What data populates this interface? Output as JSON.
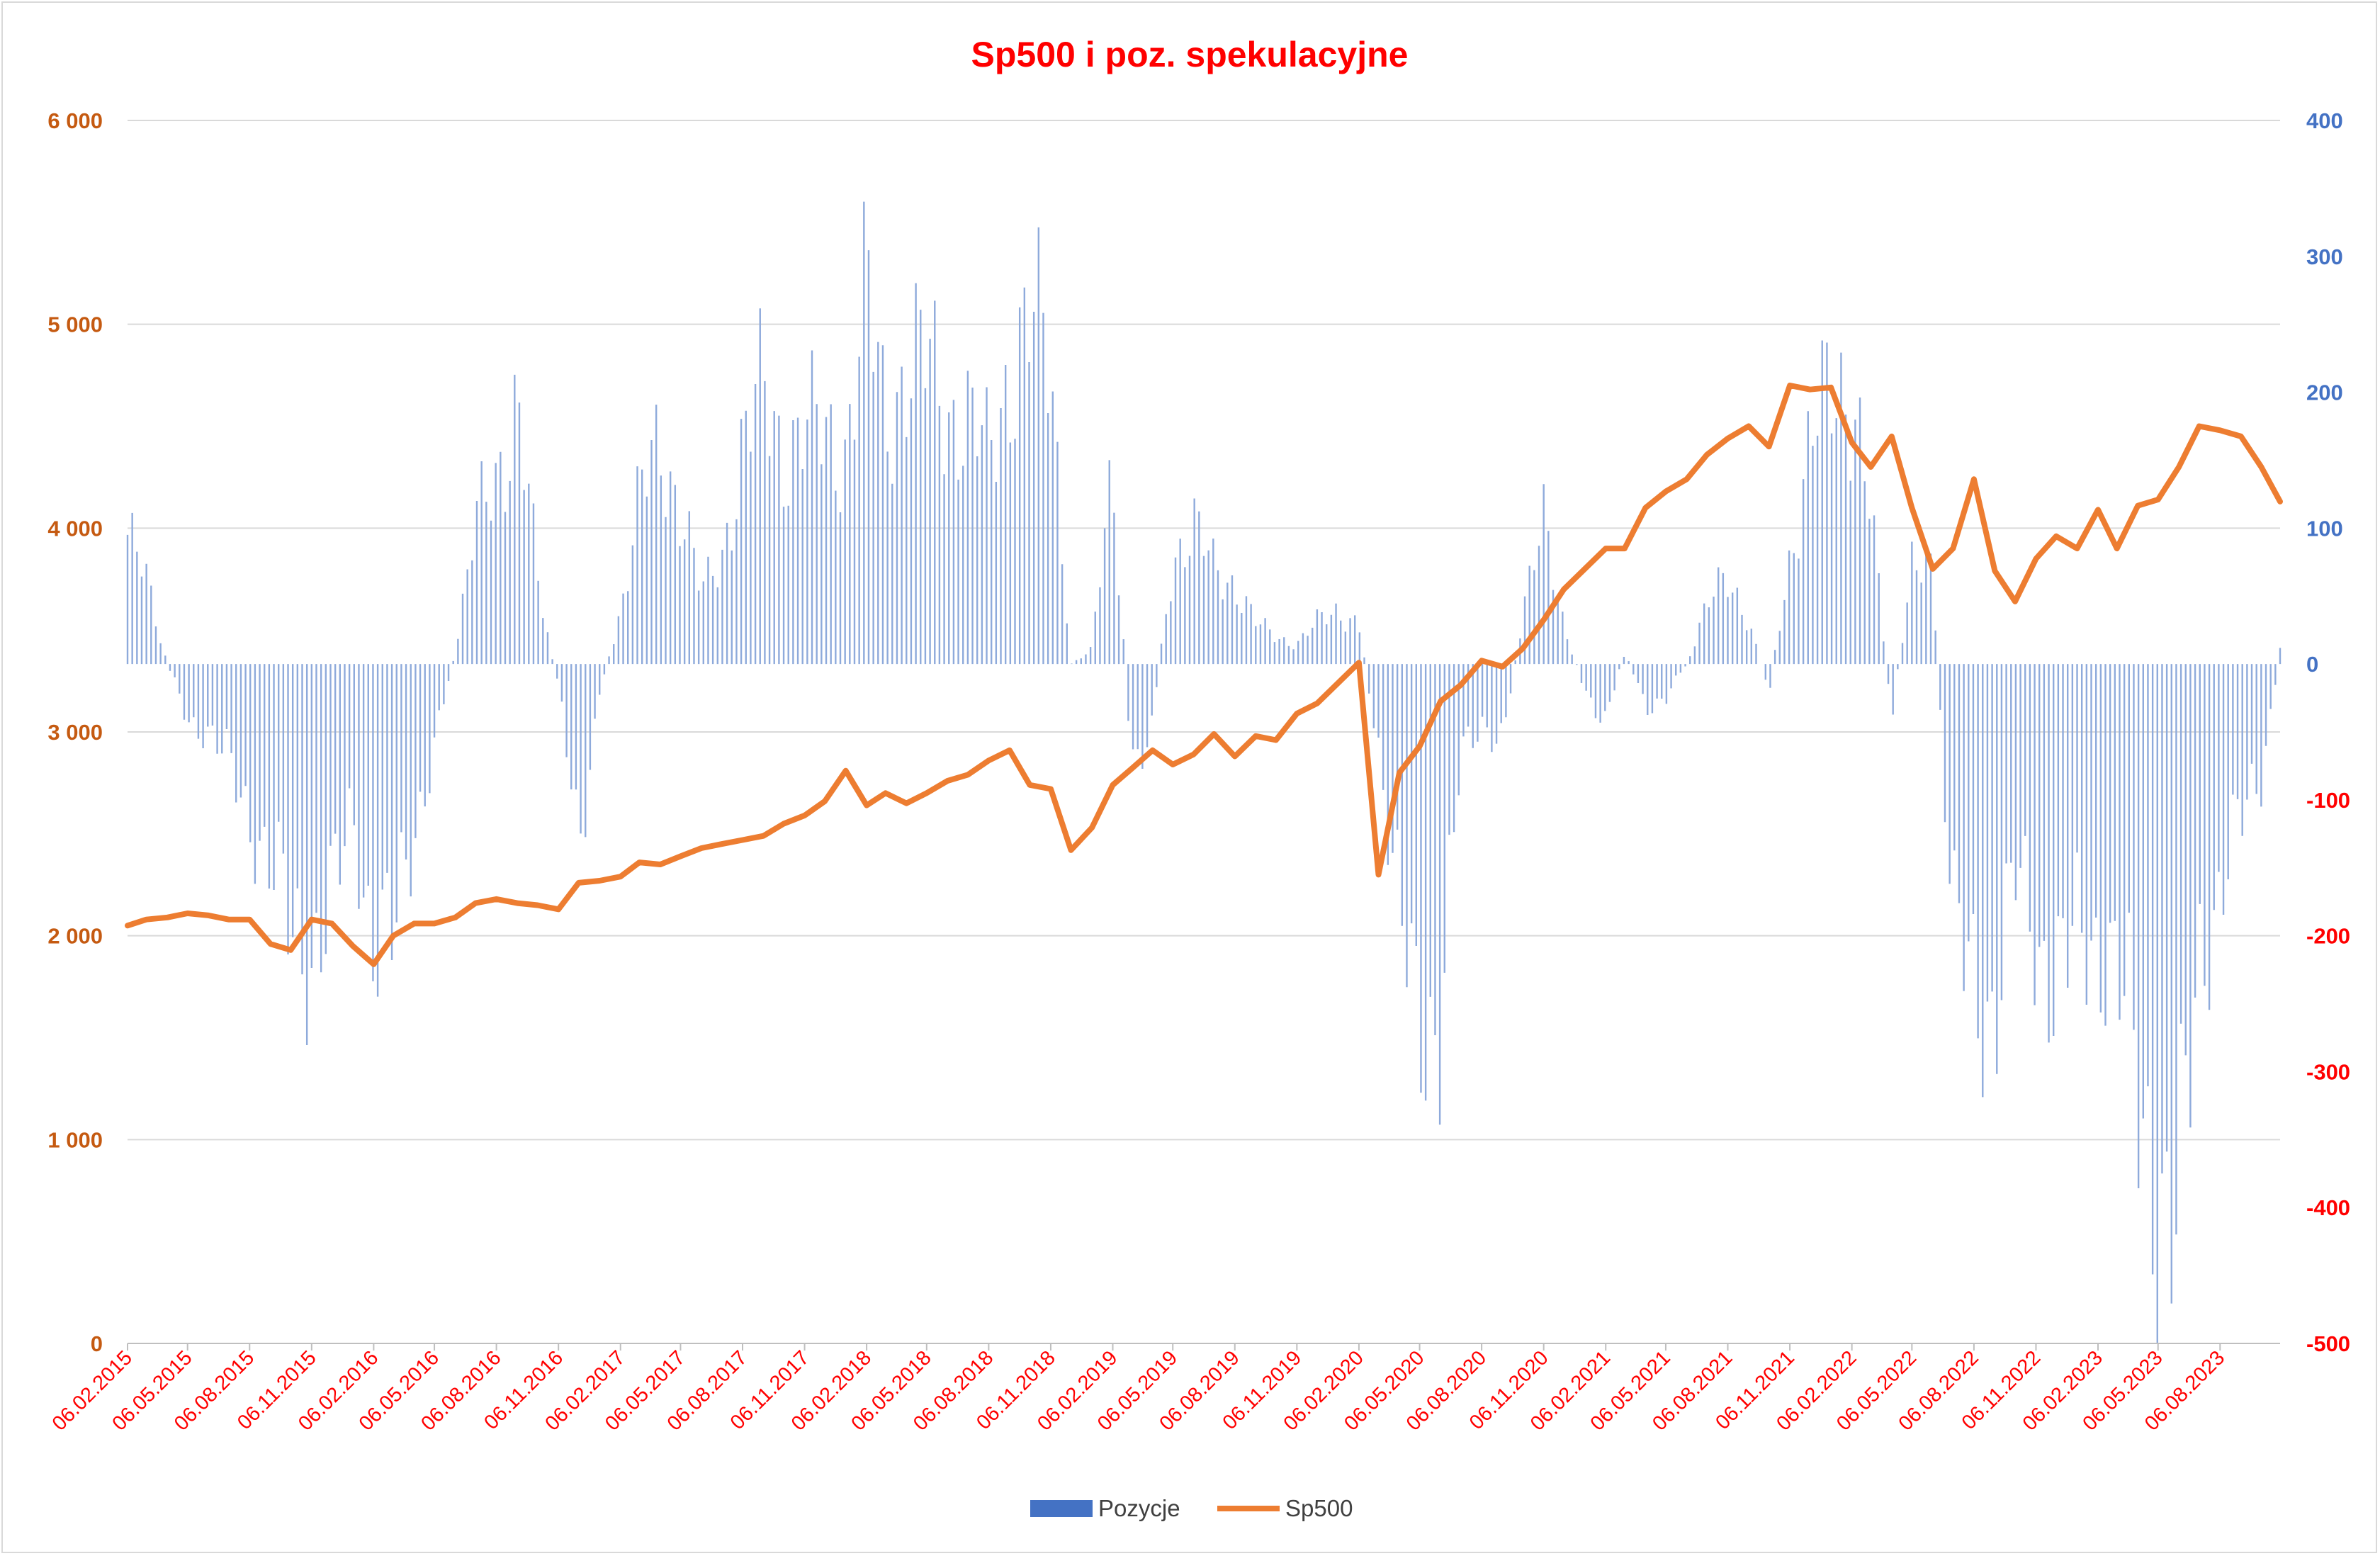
{
  "chart_data": {
    "type": "bar+line",
    "title": "Sp500 i poz. spekulacyjne",
    "legend": {
      "placement": "bottom",
      "entries": [
        {
          "name": "Pozycje",
          "color": "#4472c4",
          "kind": "bar"
        },
        {
          "name": "Sp500",
          "color": "#ed7d31",
          "kind": "line"
        }
      ]
    },
    "y_left": {
      "range": [
        0,
        6000
      ],
      "ticks": [
        0,
        1000,
        2000,
        3000,
        4000,
        5000,
        6000
      ],
      "tick_labels": [
        "0",
        "1 000",
        "2 000",
        "3 000",
        "4 000",
        "5 000",
        "6 000"
      ],
      "color": "#c55a11"
    },
    "y_right": {
      "range": [
        -500,
        400
      ],
      "ticks": [
        -500,
        -400,
        -300,
        -200,
        -100,
        0,
        100,
        200,
        300,
        400
      ],
      "tick_labels": [
        "-500",
        "-400",
        "-300",
        "-200",
        "-100",
        "0",
        "100",
        "200",
        "300",
        "400"
      ],
      "positive_color": "#4472c4",
      "negative_color": "#ff0000"
    },
    "x_axis": {
      "range": [
        "2015-02-06",
        "2023-11-03"
      ],
      "tick_dates": [
        "2015-02-06",
        "2015-05-06",
        "2015-08-06",
        "2015-11-06",
        "2016-02-06",
        "2016-05-06",
        "2016-08-06",
        "2016-11-06",
        "2017-02-06",
        "2017-05-06",
        "2017-08-06",
        "2017-11-06",
        "2018-02-06",
        "2018-05-06",
        "2018-08-06",
        "2018-11-06",
        "2019-02-06",
        "2019-05-06",
        "2019-08-06",
        "2019-11-06",
        "2020-02-06",
        "2020-05-06",
        "2020-08-06",
        "2020-11-06",
        "2021-02-06",
        "2021-05-06",
        "2021-08-06",
        "2021-11-06",
        "2022-02-06",
        "2022-05-06",
        "2022-08-06",
        "2022-11-06",
        "2023-02-06",
        "2023-05-06",
        "2023-08-06"
      ],
      "tick_labels": [
        "06.02.2015",
        "06.05.2015",
        "06.08.2015",
        "06.11.2015",
        "06.02.2016",
        "06.05.2016",
        "06.08.2016",
        "06.11.2016",
        "06.02.2017",
        "06.05.2017",
        "06.08.2017",
        "06.11.2017",
        "06.02.2018",
        "06.05.2018",
        "06.08.2018",
        "06.11.2018",
        "06.02.2019",
        "06.05.2019",
        "06.08.2019",
        "06.11.2019",
        "06.02.2020",
        "06.05.2020",
        "06.08.2020",
        "06.11.2020",
        "06.02.2021",
        "06.05.2021",
        "06.08.2021",
        "06.11.2021",
        "06.02.2022",
        "06.05.2022",
        "06.08.2022",
        "06.11.2022",
        "06.02.2023",
        "06.05.2023",
        "06.08.2023"
      ],
      "label_color": "#ff0000"
    },
    "grid": true,
    "series": [
      {
        "name": "Pozycje",
        "type": "bar",
        "axis": "right",
        "keypoints": [
          [
            "2015-02-06",
            95
          ],
          [
            "2015-03-06",
            60
          ],
          [
            "2015-04-06",
            0
          ],
          [
            "2015-05-06",
            -40
          ],
          [
            "2015-06-06",
            -50
          ],
          [
            "2015-07-06",
            -75
          ],
          [
            "2015-08-06",
            -110
          ],
          [
            "2015-09-06",
            -150
          ],
          [
            "2015-10-06",
            -200
          ],
          [
            "2015-11-06",
            -210
          ],
          [
            "2015-12-06",
            -180
          ],
          [
            "2016-01-06",
            -110
          ],
          [
            "2016-02-06",
            -200
          ],
          [
            "2016-03-06",
            -210
          ],
          [
            "2016-04-06",
            -120
          ],
          [
            "2016-05-06",
            -60
          ],
          [
            "2016-06-06",
            10
          ],
          [
            "2016-07-06",
            100
          ],
          [
            "2016-08-06",
            140
          ],
          [
            "2016-09-06",
            195
          ],
          [
            "2016-10-06",
            60
          ],
          [
            "2016-11-06",
            -20
          ],
          [
            "2016-12-06",
            -130
          ],
          [
            "2017-01-06",
            -20
          ],
          [
            "2017-02-06",
            40
          ],
          [
            "2017-03-06",
            120
          ],
          [
            "2017-04-06",
            160
          ],
          [
            "2017-05-06",
            120
          ],
          [
            "2017-06-06",
            50
          ],
          [
            "2017-07-06",
            80
          ],
          [
            "2017-08-06",
            160
          ],
          [
            "2017-09-06",
            200
          ],
          [
            "2017-10-06",
            160
          ],
          [
            "2017-11-06",
            170
          ],
          [
            "2017-12-06",
            170
          ],
          [
            "2018-01-06",
            160
          ],
          [
            "2018-02-06",
            270
          ],
          [
            "2018-03-06",
            180
          ],
          [
            "2018-04-06",
            220
          ],
          [
            "2018-05-06",
            220
          ],
          [
            "2018-06-06",
            190
          ],
          [
            "2018-07-06",
            180
          ],
          [
            "2018-08-06",
            150
          ],
          [
            "2018-09-06",
            220
          ],
          [
            "2018-10-06",
            250
          ],
          [
            "2018-11-06",
            220
          ],
          [
            "2018-12-06",
            0
          ],
          [
            "2019-01-06",
            10
          ],
          [
            "2019-02-06",
            150
          ],
          [
            "2019-03-06",
            -80
          ],
          [
            "2019-04-06",
            -40
          ],
          [
            "2019-05-06",
            80
          ],
          [
            "2019-06-06",
            100
          ],
          [
            "2019-07-06",
            70
          ],
          [
            "2019-08-06",
            60
          ],
          [
            "2019-09-06",
            30
          ],
          [
            "2019-10-06",
            20
          ],
          [
            "2019-11-06",
            15
          ],
          [
            "2019-12-06",
            30
          ],
          [
            "2020-01-06",
            40
          ],
          [
            "2020-02-06",
            30
          ],
          [
            "2020-03-06",
            -60
          ],
          [
            "2020-04-06",
            -200
          ],
          [
            "2020-05-06",
            -250
          ],
          [
            "2020-06-06",
            -270
          ],
          [
            "2020-07-06",
            -70
          ],
          [
            "2020-08-06",
            -40
          ],
          [
            "2020-09-06",
            -60
          ],
          [
            "2020-10-06",
            40
          ],
          [
            "2020-11-06",
            100
          ],
          [
            "2020-12-06",
            30
          ],
          [
            "2021-01-06",
            -20
          ],
          [
            "2021-02-06",
            -40
          ],
          [
            "2021-03-06",
            10
          ],
          [
            "2021-04-06",
            -30
          ],
          [
            "2021-05-06",
            -25
          ],
          [
            "2021-06-06",
            0
          ],
          [
            "2021-07-06",
            40
          ],
          [
            "2021-08-06",
            70
          ],
          [
            "2021-09-06",
            30
          ],
          [
            "2021-10-06",
            -20
          ],
          [
            "2021-11-06",
            80
          ],
          [
            "2021-12-06",
            160
          ],
          [
            "2022-01-06",
            200
          ],
          [
            "2022-02-06",
            210
          ],
          [
            "2022-03-06",
            110
          ],
          [
            "2022-04-06",
            -40
          ],
          [
            "2022-05-06",
            80
          ],
          [
            "2022-06-06",
            60
          ],
          [
            "2022-07-06",
            -200
          ],
          [
            "2022-08-06",
            -240
          ],
          [
            "2022-09-06",
            -250
          ],
          [
            "2022-10-06",
            -160
          ],
          [
            "2022-11-06",
            -200
          ],
          [
            "2022-12-06",
            -230
          ],
          [
            "2023-01-06",
            -210
          ],
          [
            "2023-02-06",
            -200
          ],
          [
            "2023-03-06",
            -220
          ],
          [
            "2023-04-06",
            -330
          ],
          [
            "2023-05-06",
            -380
          ],
          [
            "2023-06-06",
            -420
          ],
          [
            "2023-07-06",
            -220
          ],
          [
            "2023-08-06",
            -160
          ],
          [
            "2023-09-06",
            -120
          ],
          [
            "2023-10-06",
            -80
          ],
          [
            "2023-11-03",
            10
          ]
        ]
      },
      {
        "name": "Sp500",
        "type": "line",
        "axis": "left",
        "keypoints": [
          [
            "2015-02-06",
            2050
          ],
          [
            "2015-03-06",
            2080
          ],
          [
            "2015-04-06",
            2090
          ],
          [
            "2015-05-06",
            2110
          ],
          [
            "2015-06-06",
            2100
          ],
          [
            "2015-07-06",
            2080
          ],
          [
            "2015-08-06",
            2080
          ],
          [
            "2015-09-06",
            1960
          ],
          [
            "2015-10-06",
            1930
          ],
          [
            "2015-11-06",
            2080
          ],
          [
            "2015-12-06",
            2060
          ],
          [
            "2016-01-06",
            1950
          ],
          [
            "2016-02-06",
            1860
          ],
          [
            "2016-03-06",
            2000
          ],
          [
            "2016-04-06",
            2060
          ],
          [
            "2016-05-06",
            2060
          ],
          [
            "2016-06-06",
            2090
          ],
          [
            "2016-07-06",
            2160
          ],
          [
            "2016-08-06",
            2180
          ],
          [
            "2016-09-06",
            2160
          ],
          [
            "2016-10-06",
            2150
          ],
          [
            "2016-11-06",
            2130
          ],
          [
            "2016-12-06",
            2260
          ],
          [
            "2017-01-06",
            2270
          ],
          [
            "2017-02-06",
            2290
          ],
          [
            "2017-03-06",
            2360
          ],
          [
            "2017-04-06",
            2350
          ],
          [
            "2017-05-06",
            2390
          ],
          [
            "2017-06-06",
            2430
          ],
          [
            "2017-07-06",
            2450
          ],
          [
            "2017-08-06",
            2470
          ],
          [
            "2017-09-06",
            2490
          ],
          [
            "2017-10-06",
            2550
          ],
          [
            "2017-11-06",
            2590
          ],
          [
            "2017-12-06",
            2660
          ],
          [
            "2018-01-06",
            2810
          ],
          [
            "2018-02-06",
            2640
          ],
          [
            "2018-03-06",
            2700
          ],
          [
            "2018-04-06",
            2650
          ],
          [
            "2018-05-06",
            2700
          ],
          [
            "2018-06-06",
            2760
          ],
          [
            "2018-07-06",
            2790
          ],
          [
            "2018-08-06",
            2860
          ],
          [
            "2018-09-06",
            2910
          ],
          [
            "2018-10-06",
            2740
          ],
          [
            "2018-11-06",
            2720
          ],
          [
            "2018-12-06",
            2420
          ],
          [
            "2019-01-06",
            2530
          ],
          [
            "2019-02-06",
            2740
          ],
          [
            "2019-03-06",
            2820
          ],
          [
            "2019-04-06",
            2910
          ],
          [
            "2019-05-06",
            2840
          ],
          [
            "2019-06-06",
            2890
          ],
          [
            "2019-07-06",
            2990
          ],
          [
            "2019-08-06",
            2880
          ],
          [
            "2019-09-06",
            2980
          ],
          [
            "2019-10-06",
            2960
          ],
          [
            "2019-11-06",
            3090
          ],
          [
            "2019-12-06",
            3140
          ],
          [
            "2020-01-06",
            3240
          ],
          [
            "2020-02-06",
            3340
          ],
          [
            "2020-03-06",
            2300
          ],
          [
            "2020-04-06",
            2800
          ],
          [
            "2020-05-06",
            2930
          ],
          [
            "2020-06-06",
            3150
          ],
          [
            "2020-07-06",
            3230
          ],
          [
            "2020-08-06",
            3350
          ],
          [
            "2020-09-06",
            3320
          ],
          [
            "2020-10-06",
            3410
          ],
          [
            "2020-11-06",
            3550
          ],
          [
            "2020-12-06",
            3700
          ],
          [
            "2021-01-06",
            3800
          ],
          [
            "2021-02-06",
            3900
          ],
          [
            "2021-03-06",
            3900
          ],
          [
            "2021-04-06",
            4100
          ],
          [
            "2021-05-06",
            4180
          ],
          [
            "2021-06-06",
            4240
          ],
          [
            "2021-07-06",
            4360
          ],
          [
            "2021-08-06",
            4440
          ],
          [
            "2021-09-06",
            4500
          ],
          [
            "2021-10-06",
            4400
          ],
          [
            "2021-11-06",
            4700
          ],
          [
            "2021-12-06",
            4680
          ],
          [
            "2022-01-06",
            4690
          ],
          [
            "2022-02-06",
            4420
          ],
          [
            "2022-03-06",
            4300
          ],
          [
            "2022-04-06",
            4450
          ],
          [
            "2022-05-06",
            4100
          ],
          [
            "2022-06-06",
            3800
          ],
          [
            "2022-07-06",
            3900
          ],
          [
            "2022-08-06",
            4240
          ],
          [
            "2022-09-06",
            3790
          ],
          [
            "2022-10-06",
            3640
          ],
          [
            "2022-11-06",
            3850
          ],
          [
            "2022-12-06",
            3960
          ],
          [
            "2023-01-06",
            3900
          ],
          [
            "2023-02-06",
            4090
          ],
          [
            "2023-03-06",
            3900
          ],
          [
            "2023-04-06",
            4110
          ],
          [
            "2023-05-06",
            4140
          ],
          [
            "2023-06-06",
            4300
          ],
          [
            "2023-07-06",
            4500
          ],
          [
            "2023-08-06",
            4480
          ],
          [
            "2023-09-06",
            4450
          ],
          [
            "2023-10-06",
            4300
          ],
          [
            "2023-11-03",
            4130
          ]
        ]
      }
    ]
  }
}
